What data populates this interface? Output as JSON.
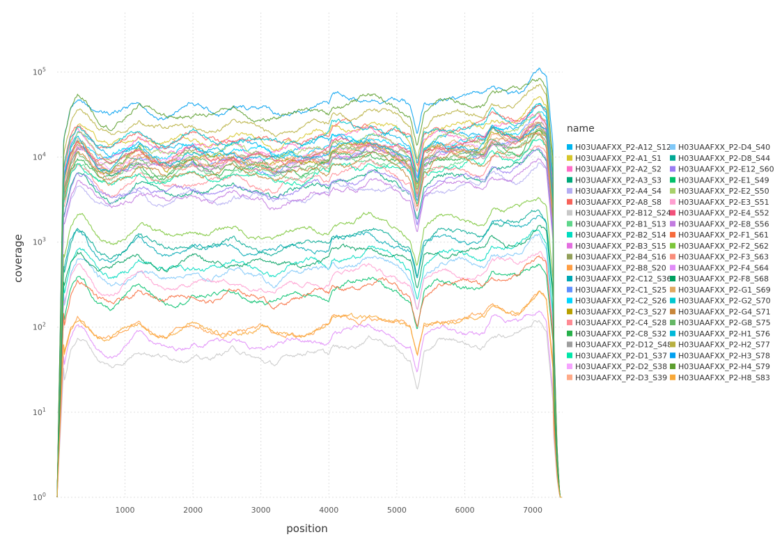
{
  "chart_data": {
    "type": "line",
    "title": "",
    "xlabel": "position",
    "ylabel": "coverage",
    "y_scale": "log10",
    "xlim": [
      1,
      7440
    ],
    "ylim": [
      1,
      500000
    ],
    "x_ticks": [
      1000,
      2000,
      3000,
      4000,
      5000,
      6000,
      7000
    ],
    "x_tick_labels": [
      "1000",
      "2000",
      "3000",
      "4000",
      "5000",
      "6000",
      "7000"
    ],
    "y_ticks": [
      1,
      10,
      100,
      1000,
      10000,
      100000
    ],
    "y_tick_bases": [
      "10",
      "10",
      "10",
      "10",
      "10",
      "10"
    ],
    "y_tick_exps": [
      "0",
      "1",
      "2",
      "3",
      "4",
      "5"
    ],
    "grid": true,
    "legend": {
      "title": "name",
      "placement": "right"
    },
    "shape_x": [
      1,
      100,
      200,
      300,
      400,
      600,
      800,
      1000,
      1200,
      1400,
      1600,
      1800,
      2000,
      2200,
      2400,
      2600,
      2800,
      3000,
      3200,
      3400,
      3600,
      3800,
      4000,
      4050,
      4200,
      4400,
      4600,
      4800,
      5000,
      5200,
      5300,
      5400,
      5600,
      5800,
      6000,
      6200,
      6280,
      6400,
      6600,
      6800,
      7000,
      7100,
      7200,
      7300,
      7360,
      7400,
      7440
    ],
    "shape_profile": [
      0.0,
      1.0,
      1.35,
      1.5,
      1.45,
      1.25,
      1.2,
      1.3,
      1.4,
      1.3,
      1.25,
      1.3,
      1.35,
      1.3,
      1.3,
      1.35,
      1.3,
      1.3,
      1.25,
      1.3,
      1.3,
      1.35,
      1.35,
      1.45,
      1.45,
      1.45,
      1.5,
      1.45,
      1.4,
      1.3,
      0.95,
      1.35,
      1.45,
      1.45,
      1.45,
      1.45,
      1.45,
      1.6,
      1.55,
      1.55,
      1.7,
      1.75,
      1.65,
      0.8,
      0.2,
      0.0,
      0.0
    ],
    "series": [
      {
        "name": "H03UAAFXX_P2-A12_S12",
        "color": "#00b5ee",
        "base_log": 4.1
      },
      {
        "name": "H03UAAFXX_P2-A1_S1",
        "color": "#d6c62b",
        "base_log": 4.2
      },
      {
        "name": "H03UAAFXX_P2-A2_S2",
        "color": "#ff6ec7",
        "base_log": 4.1
      },
      {
        "name": "H03UAAFXX_P2-A3_S3",
        "color": "#00a87a",
        "base_log": 3.6
      },
      {
        "name": "H03UAAFXX_P2-A4_S4",
        "color": "#b5aef2",
        "base_log": 3.5
      },
      {
        "name": "H03UAAFXX_P2-A8_S8",
        "color": "#f7625a",
        "base_log": 4.2
      },
      {
        "name": "H03UAAFXX_P2-B12_S24",
        "color": "#c8c8c8",
        "base_log": 1.65
      },
      {
        "name": "H03UAAFXX_P2-B1_S13",
        "color": "#5fd68b",
        "base_log": 3.8
      },
      {
        "name": "H03UAAFXX_P2-B2_S14",
        "color": "#00dcc0",
        "base_log": 2.7
      },
      {
        "name": "H03UAAFXX_P2-B3_S15",
        "color": "#e46ee0",
        "base_log": 3.9
      },
      {
        "name": "H03UAAFXX_P2-B4_S16",
        "color": "#93a05a",
        "base_log": 4.0
      },
      {
        "name": "H03UAAFXX_P2-B8_S20",
        "color": "#ff9e44",
        "base_log": 1.95
      },
      {
        "name": "H03UAAFXX_P2-C12_S36",
        "color": "#00a8b4",
        "base_log": 2.9
      },
      {
        "name": "H03UAAFXX_P2-C1_S25",
        "color": "#5f8fff",
        "base_log": 3.9
      },
      {
        "name": "H03UAAFXX_P2-C2_S26",
        "color": "#00d6ff",
        "base_log": 4.05
      },
      {
        "name": "H03UAAFXX_P2-C3_S27",
        "color": "#b8a000",
        "base_log": 3.95
      },
      {
        "name": "H03UAAFXX_P2-C4_S28",
        "color": "#ff8b94",
        "base_log": 3.7
      },
      {
        "name": "H03UAAFXX_P2-C8_S32",
        "color": "#27b04a",
        "base_log": 3.85
      },
      {
        "name": "H03UAAFXX_P2-D12_S48",
        "color": "#9e9e9e",
        "base_log": 3.9
      },
      {
        "name": "H03UAAFXX_P2-D1_S37",
        "color": "#00e6a8",
        "base_log": 3.75
      },
      {
        "name": "H03UAAFXX_P2-D2_S38",
        "color": "#f6a4ff",
        "base_log": 3.95
      },
      {
        "name": "H03UAAFXX_P2-D3_S39",
        "color": "#ffaa88",
        "base_log": 3.95
      },
      {
        "name": "H03UAAFXX_P2-D4_S40",
        "color": "#7fc8f8",
        "base_log": 2.6
      },
      {
        "name": "H03UAAFXX_P2-D8_S44",
        "color": "#00a894",
        "base_log": 2.95
      },
      {
        "name": "H03UAAFXX_P2-E12_S60",
        "color": "#9a7cf2",
        "base_log": 3.6
      },
      {
        "name": "H03UAAFXX_P2-E1_S49",
        "color": "#00c06a",
        "base_log": 2.35
      },
      {
        "name": "H03UAAFXX_P2-E2_S50",
        "color": "#a8d16a",
        "base_log": 4.05
      },
      {
        "name": "H03UAAFXX_P2-E3_S51",
        "color": "#ff9fd0",
        "base_log": 2.5
      },
      {
        "name": "H03UAAFXX_P2-E4_S52",
        "color": "#f2507a",
        "base_log": 4.0
      },
      {
        "name": "H03UAAFXX_P2-E8_S56",
        "color": "#c27be0",
        "base_log": 3.5
      },
      {
        "name": "H03UAAFXX_P2-F1_S61",
        "color": "#f76b3c",
        "base_log": 2.35
      },
      {
        "name": "H03UAAFXX_P2-F2_S62",
        "color": "#7cc63a",
        "base_log": 3.1
      },
      {
        "name": "H03UAAFXX_P2-F3_S63",
        "color": "#f98c7a",
        "base_log": 3.9
      },
      {
        "name": "H03UAAFXX_P2-F4_S64",
        "color": "#e08cf8",
        "base_log": 1.8
      },
      {
        "name": "H03UAAFXX_P2-F8_S68",
        "color": "#00a060",
        "base_log": 2.75
      },
      {
        "name": "H03UAAFXX_P2-G1_S69",
        "color": "#e0a860",
        "base_log": 3.95
      },
      {
        "name": "H03UAAFXX_P2-G2_S70",
        "color": "#00c8d0",
        "base_log": 4.2
      },
      {
        "name": "H03UAAFXX_P2-G4_S71",
        "color": "#c8863a",
        "base_log": 3.8
      },
      {
        "name": "H03UAAFXX_P2-G8_S75",
        "color": "#66b866",
        "base_log": 3.9
      },
      {
        "name": "H03UAAFXX_P2-H1_S76",
        "color": "#00b8d8",
        "base_log": 4.0
      },
      {
        "name": "H03UAAFXX_P2-H2_S77",
        "color": "#b8b040",
        "base_log": 4.35
      },
      {
        "name": "H03UAAFXX_P2-H3_S78",
        "color": "#00a0f0",
        "base_log": 4.55
      },
      {
        "name": "H03UAAFXX_P2-H4_S79",
        "color": "#5c9e2e",
        "base_log": 4.5
      },
      {
        "name": "H03UAAFXX_P2-H8_S83",
        "color": "#f8a838",
        "base_log": 1.95
      }
    ]
  }
}
